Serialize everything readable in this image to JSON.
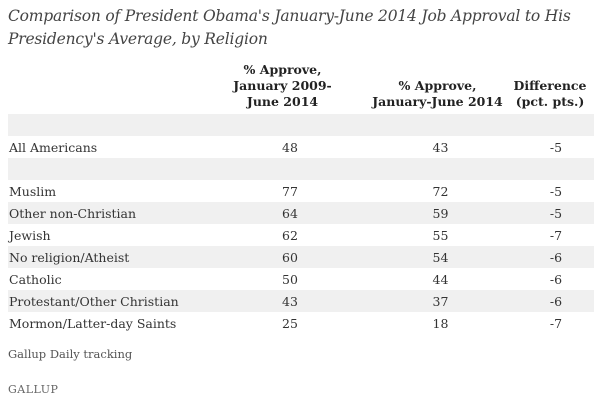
{
  "title": "Comparison of President Obama's January-June 2014 Job Approval to His Presidency's Average, by Religion",
  "columns": [
    "% Approve, January 2009-June 2014",
    "% Approve, January-June 2014",
    "Difference (pct. pts.)"
  ],
  "column_lines": [
    [
      "% Approve,",
      "January 2009-",
      "June 2014"
    ],
    [
      "% Approve,",
      "January-June 2014"
    ],
    [
      "Difference",
      "(pct. pts.)"
    ]
  ],
  "source": "Gallup Daily tracking",
  "logo": "GALLUP",
  "colors": {
    "band": "#f0f0f0",
    "text": "#333333"
  },
  "chart_data": {
    "type": "table",
    "title": "Comparison of President Obama's January-June 2014 Job Approval to His Presidency's Average, by Religion",
    "columns": [
      "% Approve, January 2009-June 2014",
      "% Approve, January-June 2014",
      "Difference (pct. pts.)"
    ],
    "rows": [
      {
        "label": "",
        "values": [
          "",
          "",
          ""
        ]
      },
      {
        "label": "All Americans",
        "values": [
          "48",
          "43",
          "-5"
        ]
      },
      {
        "label": "",
        "values": [
          "",
          "",
          ""
        ]
      },
      {
        "label": "Muslim",
        "values": [
          "77",
          "72",
          "-5"
        ]
      },
      {
        "label": "Other non-Christian",
        "values": [
          "64",
          "59",
          "-5"
        ]
      },
      {
        "label": "Jewish",
        "values": [
          "62",
          "55",
          "-7"
        ]
      },
      {
        "label": "No religion/Atheist",
        "values": [
          "60",
          "54",
          "-6"
        ]
      },
      {
        "label": "Catholic",
        "values": [
          "50",
          "44",
          "-6"
        ]
      },
      {
        "label": "Protestant/Other Christian",
        "values": [
          "43",
          "37",
          "-6"
        ]
      },
      {
        "label": "Mormon/Latter-day Saints",
        "values": [
          "25",
          "18",
          "-7"
        ]
      }
    ]
  }
}
